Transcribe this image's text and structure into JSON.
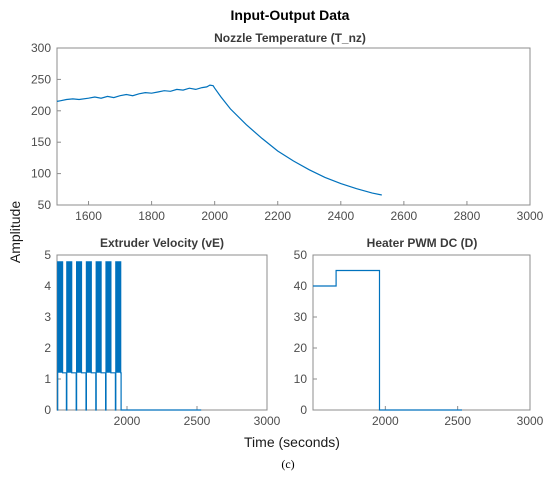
{
  "figure": {
    "title": "Input-Output Data",
    "xlabel": "Time (seconds)",
    "ylabel": "Amplitude",
    "caption": "(c)",
    "line_color": "#0072BD"
  },
  "chart_data": [
    {
      "type": "line",
      "title": "Nozzle Temperature (T_nz)",
      "xlim": [
        1500,
        3000
      ],
      "ylim": [
        50,
        300
      ],
      "xticks": [
        1600,
        1800,
        2000,
        2200,
        2400,
        2600,
        2800,
        3000
      ],
      "yticks": [
        50,
        100,
        150,
        200,
        250,
        300
      ],
      "series": [
        {
          "x": [
            1500,
            1510,
            1530,
            1550,
            1570,
            1600,
            1620,
            1640,
            1660,
            1680,
            1700,
            1720,
            1740,
            1760,
            1780,
            1800,
            1820,
            1840,
            1860,
            1880,
            1900,
            1920,
            1940,
            1960,
            1975,
            1985,
            1995,
            2000,
            2020,
            2050,
            2100,
            2150,
            2200,
            2250,
            2300,
            2350,
            2400,
            2450,
            2500,
            2530
          ],
          "y": [
            215,
            216,
            218,
            219,
            218,
            220,
            222,
            220,
            223,
            221,
            224,
            226,
            224,
            227,
            229,
            228,
            230,
            232,
            231,
            234,
            233,
            236,
            234,
            237,
            238,
            241,
            240,
            236,
            222,
            203,
            178,
            156,
            136,
            120,
            106,
            94,
            84,
            76,
            69,
            66
          ]
        }
      ]
    },
    {
      "type": "line",
      "title": "Extruder Velocity (vE)",
      "xlim": [
        1500,
        3000
      ],
      "ylim": [
        0,
        5
      ],
      "xticks": [
        2000,
        2500,
        3000
      ],
      "yticks": [
        0,
        1,
        2,
        3,
        4,
        5
      ],
      "series": [
        {
          "pulse_starts": [
            1505,
            1570,
            1640,
            1710,
            1780,
            1850,
            1920
          ],
          "pulse_width": 35,
          "high": 4.8,
          "mid": 1.2,
          "low": 0,
          "x_end": 2530
        }
      ]
    },
    {
      "type": "line",
      "title": "Heater PWM DC (D)",
      "xlim": [
        1500,
        3000
      ],
      "ylim": [
        0,
        50
      ],
      "xticks": [
        2000,
        2500,
        3000
      ],
      "yticks": [
        0,
        10,
        20,
        30,
        40,
        50
      ],
      "series": [
        {
          "x": [
            1500,
            1660,
            1660,
            1960,
            1960,
            2530
          ],
          "y": [
            40,
            40,
            45,
            45,
            0,
            0
          ]
        }
      ]
    }
  ]
}
